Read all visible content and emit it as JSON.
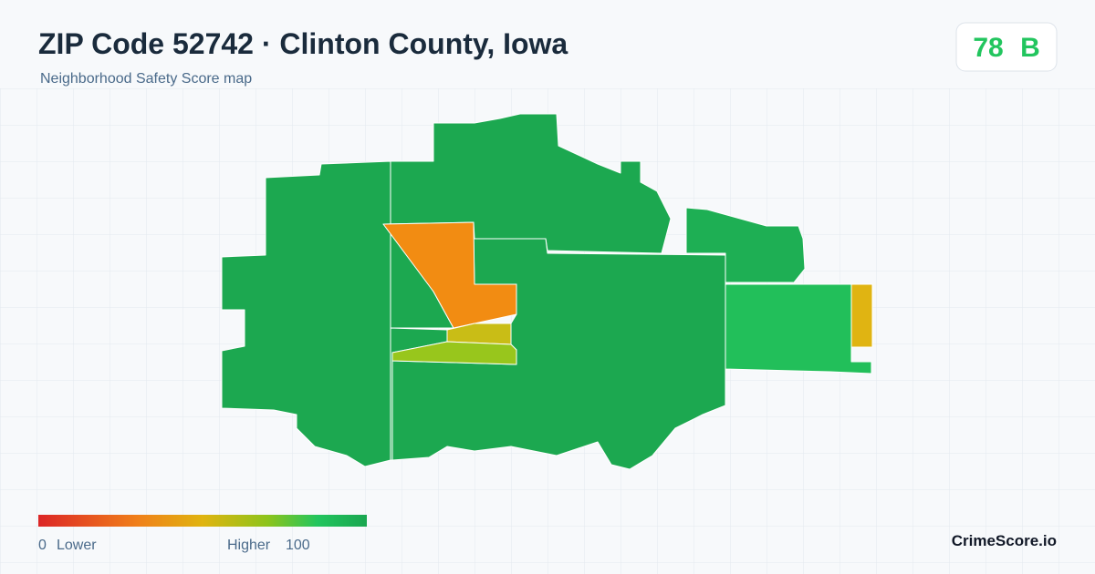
{
  "header": {
    "title": "ZIP Code 52742 · Clinton County, Iowa",
    "subtitle": "Neighborhood Safety Score map"
  },
  "score": {
    "value": "78",
    "grade": "B"
  },
  "legend": {
    "min": "0",
    "min_label": "Lower",
    "max_label": "Higher",
    "max": "100"
  },
  "brand": "CrimeScore.io"
}
